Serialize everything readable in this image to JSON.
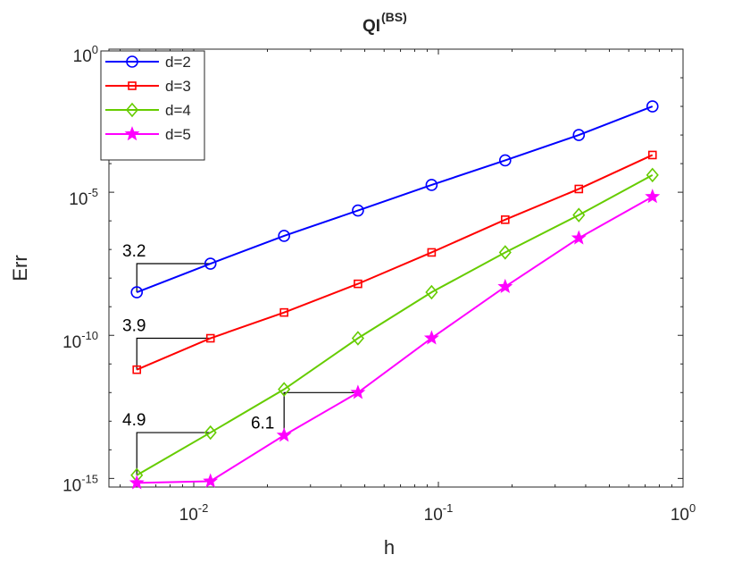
{
  "chart_data": {
    "type": "line",
    "title": "QI",
    "title_superscript": "(BS)",
    "xlabel": "h",
    "ylabel": "Err",
    "x_scale": "log",
    "y_scale": "log",
    "xlim": [
      0.0045,
      1.0
    ],
    "ylim": [
      5e-16,
      1.0
    ],
    "grid": false,
    "legend_position": "top-left",
    "x_ticks": [
      {
        "value": 0.01,
        "base": "10",
        "exp": "-2"
      },
      {
        "value": 0.1,
        "base": "10",
        "exp": "-1"
      },
      {
        "value": 1,
        "base": "10",
        "exp": "0"
      }
    ],
    "y_ticks": [
      {
        "value": 1e-15,
        "base": "10",
        "exp": "-15"
      },
      {
        "value": 1e-10,
        "base": "10",
        "exp": "-10"
      },
      {
        "value": 1e-05,
        "base": "10",
        "exp": "-5"
      },
      {
        "value": 1,
        "base": "10",
        "exp": "0"
      }
    ],
    "x": [
      0.00585,
      0.0117,
      0.0234,
      0.0469,
      0.0938,
      0.1875,
      0.375,
      0.75
    ],
    "series": [
      {
        "name": "d=2",
        "color": "#0000ff",
        "marker": "circle",
        "values": [
          3.2e-09,
          3.2e-08,
          3e-07,
          2.3e-06,
          1.8e-05,
          0.00013,
          0.001,
          0.01
        ]
      },
      {
        "name": "d=3",
        "color": "#ff0000",
        "marker": "square",
        "values": [
          6.3e-12,
          7.9e-11,
          6.3e-10,
          6.3e-09,
          7.9e-08,
          1.1e-06,
          1.3e-05,
          0.0002
        ]
      },
      {
        "name": "d=4",
        "color": "#66cc00",
        "marker": "diamond",
        "values": [
          1.3e-15,
          4e-14,
          1.3e-12,
          7.9e-11,
          3.2e-09,
          7.9e-08,
          1.6e-06,
          4e-05
        ]
      },
      {
        "name": "d=5",
        "color": "#ff00ff",
        "marker": "star",
        "values": [
          7e-16,
          8e-16,
          3.2e-14,
          1e-12,
          8e-11,
          5e-09,
          2.5e-07,
          7e-06
        ]
      }
    ],
    "annotations": [
      {
        "label": "3.2",
        "series": 0
      },
      {
        "label": "3.9",
        "series": 1
      },
      {
        "label": "4.9",
        "series": 2
      },
      {
        "label": "6.1",
        "series": 3
      }
    ]
  }
}
